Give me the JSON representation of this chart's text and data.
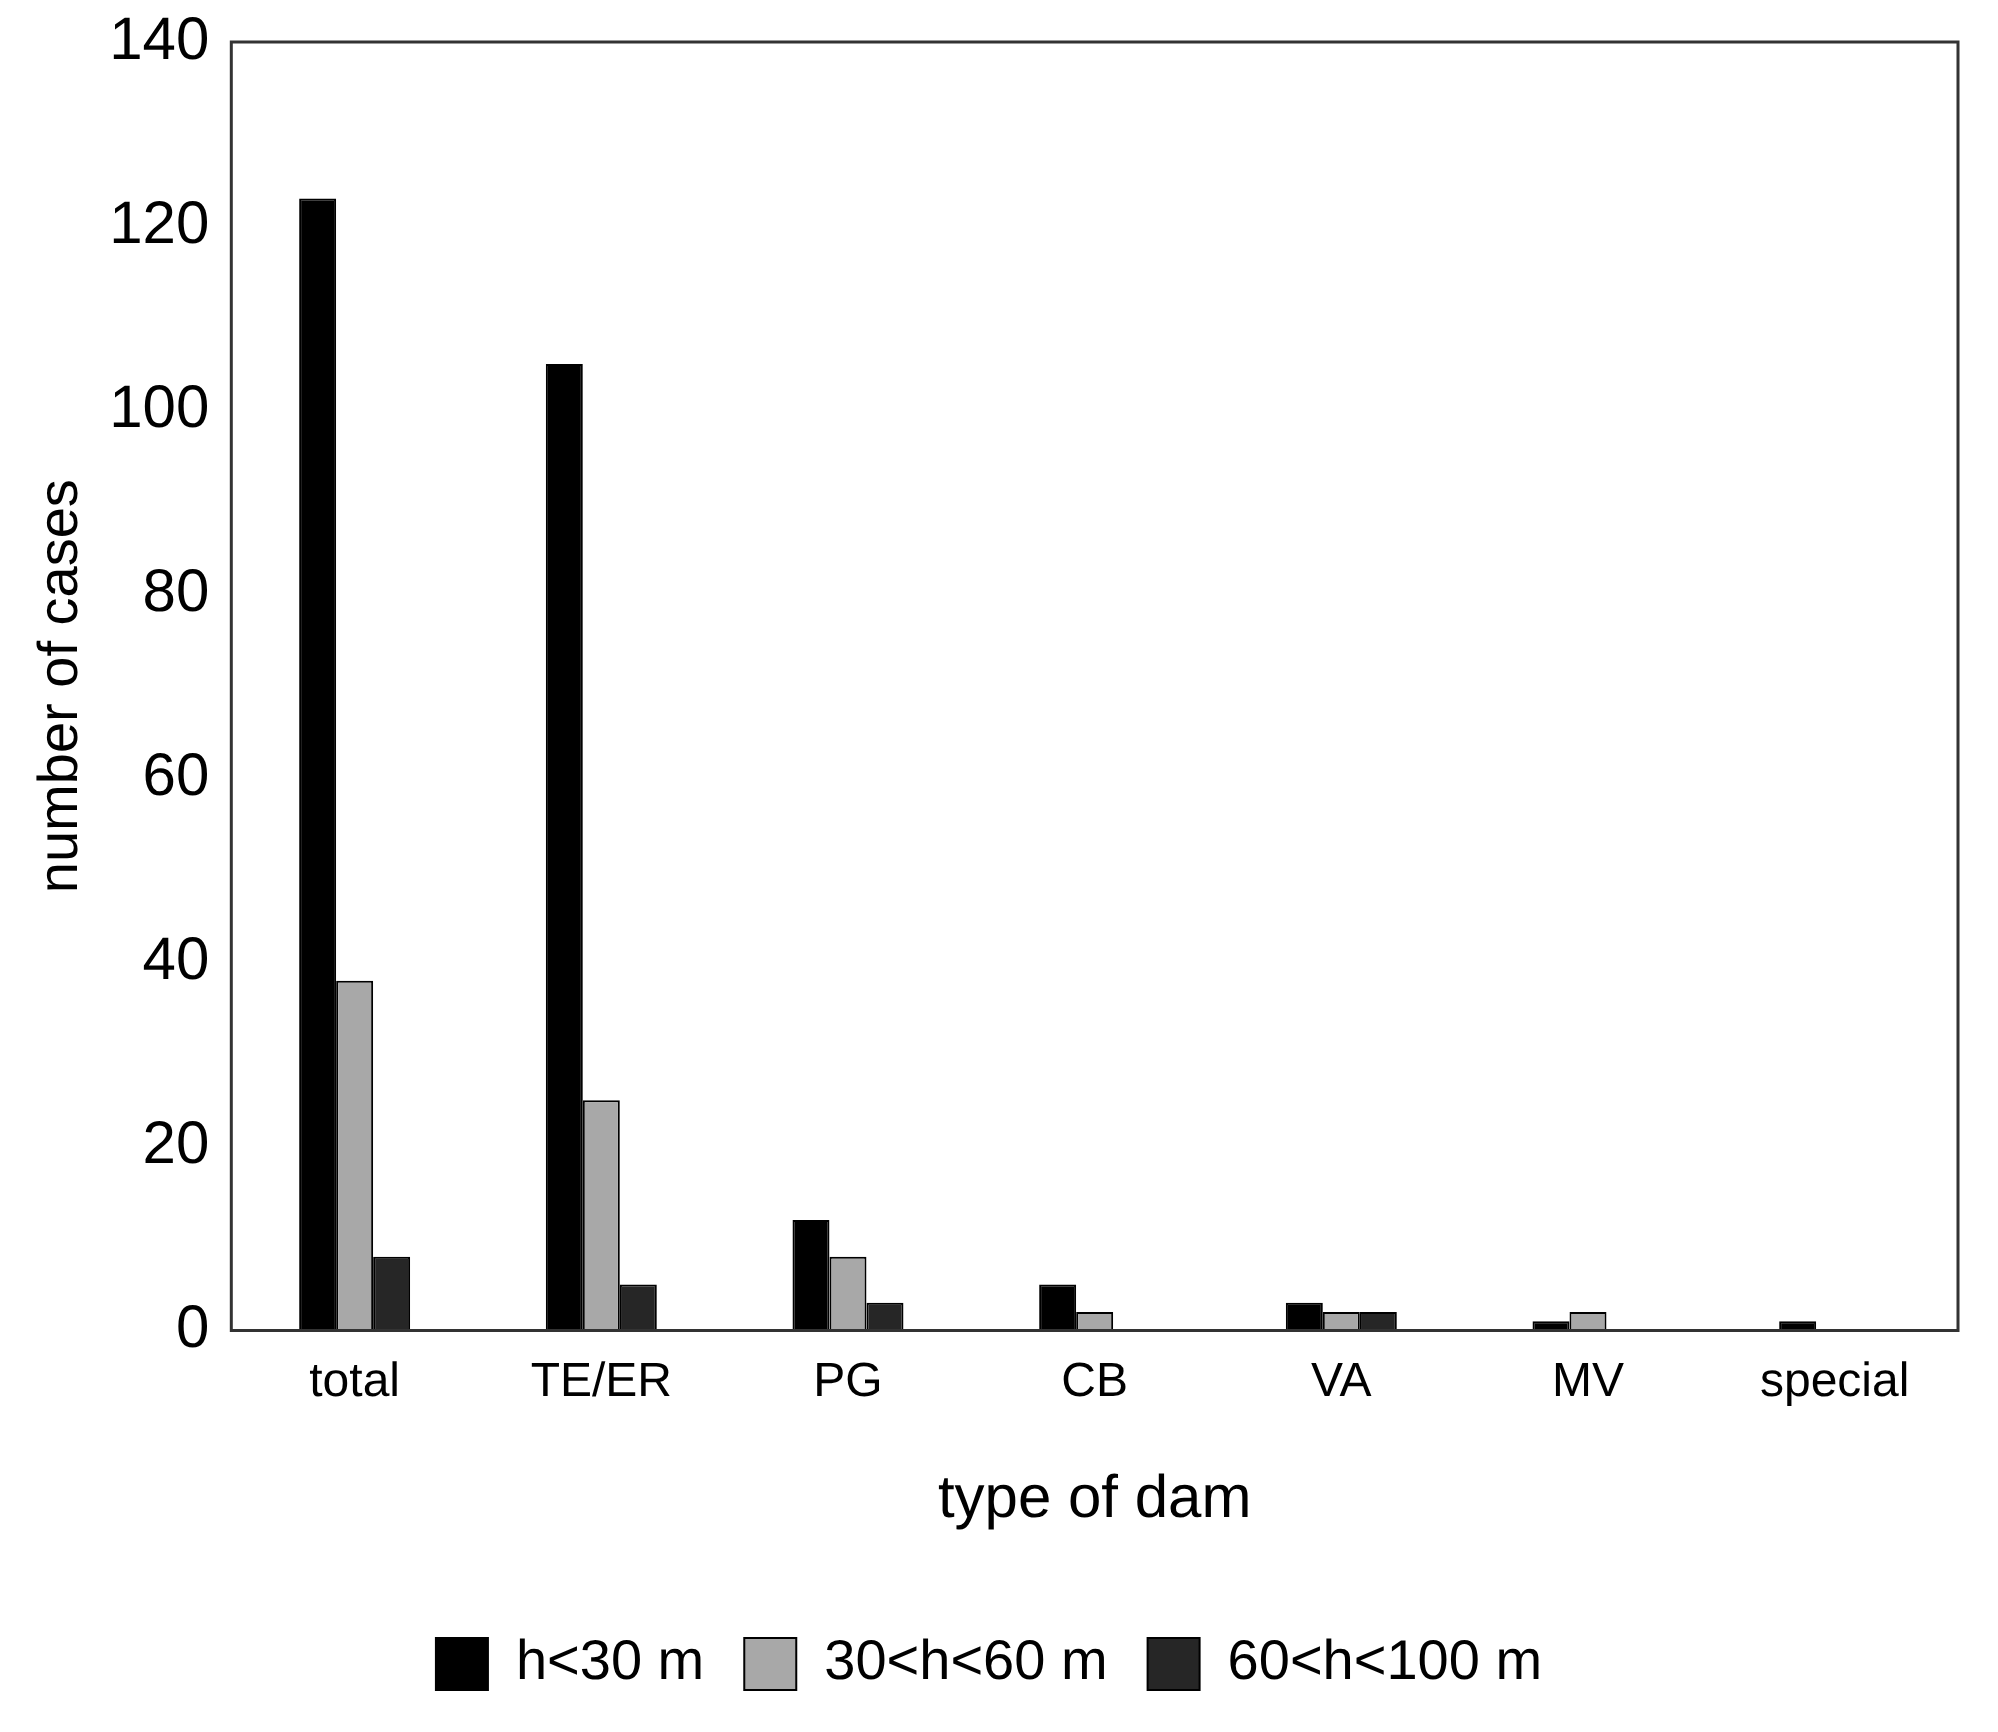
{
  "chart_data": {
    "type": "bar",
    "xlabel": "type of dam",
    "ylabel": "number of cases",
    "categories": [
      "total",
      "TE/ER",
      "PG",
      "CB",
      "VA",
      "MV",
      "special"
    ],
    "series": [
      {
        "name": "h<30 m",
        "color": "#000000",
        "values": [
          123,
          105,
          12,
          5,
          3,
          1,
          1
        ]
      },
      {
        "name": "30<h<60 m",
        "color": "#a8a8a8",
        "values": [
          38,
          25,
          8,
          2,
          2,
          2,
          null
        ]
      },
      {
        "name": "60<h<100 m",
        "color": "#262626",
        "values": [
          8,
          5,
          3,
          null,
          2,
          null,
          null
        ]
      }
    ],
    "ylim": [
      0,
      140
    ],
    "yticks": [
      0,
      20,
      40,
      60,
      80,
      100,
      120,
      140
    ],
    "grid": false,
    "legend": "bottom"
  }
}
